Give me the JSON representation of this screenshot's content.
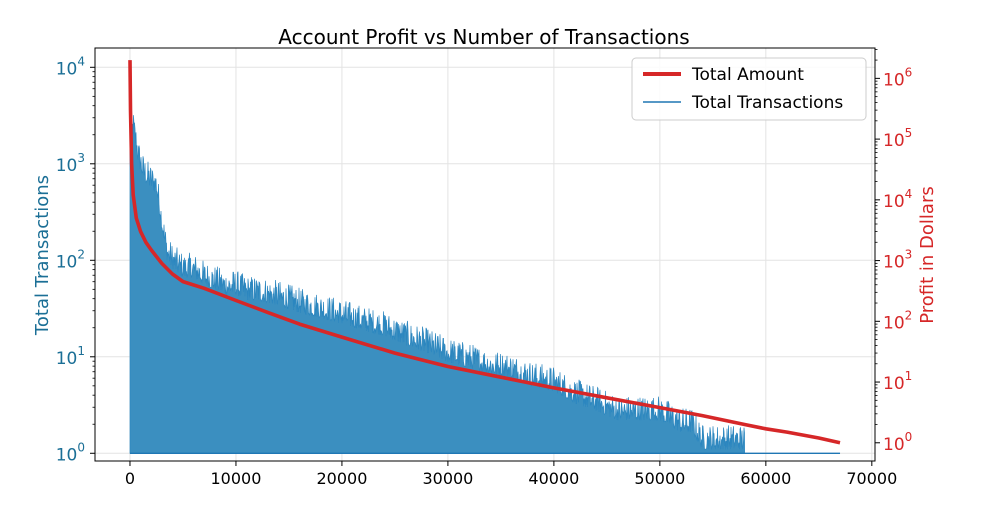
{
  "chart_data": {
    "type": "line",
    "title": "Account Profit vs Number of Transactions",
    "xlabel": "",
    "xlim": [
      -3300,
      70300
    ],
    "x_ticks": [
      0,
      10000,
      20000,
      30000,
      40000,
      50000,
      60000,
      70000
    ],
    "x_tick_labels": [
      "0",
      "10000",
      "20000",
      "30000",
      "40000",
      "50000",
      "60000",
      "70000"
    ],
    "y_left": {
      "label": "Total Transactions",
      "scale": "log",
      "ylim_log10": [
        -0.08,
        4.2
      ],
      "ticks": [
        {
          "base": "10",
          "exp": "0"
        },
        {
          "base": "10",
          "exp": "1"
        },
        {
          "base": "10",
          "exp": "2"
        },
        {
          "base": "10",
          "exp": "3"
        },
        {
          "base": "10",
          "exp": "4"
        }
      ],
      "color": "#1f77b4"
    },
    "y_right": {
      "label": "Profit in Dollars",
      "scale": "log",
      "ylim_log10": [
        -0.3,
        6.5
      ],
      "ticks": [
        {
          "base": "10",
          "exp": "0"
        },
        {
          "base": "10",
          "exp": "1"
        },
        {
          "base": "10",
          "exp": "2"
        },
        {
          "base": "10",
          "exp": "3"
        },
        {
          "base": "10",
          "exp": "4"
        },
        {
          "base": "10",
          "exp": "5"
        },
        {
          "base": "10",
          "exp": "6"
        }
      ],
      "color": "#d62728"
    },
    "legend": {
      "location": "top-right",
      "entries": [
        {
          "label": "Total Amount",
          "color": "#d62728",
          "style": "thick-line"
        },
        {
          "label": "Total Transactions",
          "color": "#1f77b4",
          "style": "thin-line"
        }
      ]
    },
    "series": [
      {
        "name": "Total Transactions",
        "axis": "left",
        "color": "#1f77b4",
        "description": "dense per-account transaction counts, filled from 1 to the envelope",
        "envelope_x": [
          0,
          120,
          300,
          500,
          800,
          1200,
          1600,
          2000,
          2500,
          3000,
          3500,
          4000,
          5000,
          6000,
          7000,
          8000,
          9000,
          10000,
          11000,
          12000,
          14000,
          16000,
          18000,
          20000,
          22000,
          24000,
          26000,
          28000,
          30000,
          32000,
          34000,
          36000,
          38000,
          40000,
          42000,
          44000,
          46000,
          48000,
          50000,
          52000,
          53000,
          54000,
          56000,
          58000
        ],
        "envelope_y": [
          2600,
          3000,
          3700,
          2800,
          1800,
          1300,
          1100,
          1000,
          900,
          380,
          180,
          150,
          120,
          120,
          100,
          90,
          80,
          80,
          70,
          70,
          62,
          52,
          46,
          40,
          34,
          30,
          24,
          20,
          16,
          14,
          12,
          11,
          9,
          8,
          6,
          5,
          4,
          4,
          4,
          3,
          3,
          2,
          2,
          2
        ],
        "floor_x": [
          0,
          58000,
          58000,
          67000
        ],
        "floor_y": [
          1,
          1,
          1,
          1
        ]
      },
      {
        "name": "Total Amount",
        "axis": "right",
        "color": "#d62728",
        "x": [
          0,
          50,
          150,
          300,
          600,
          1000,
          1500,
          2000,
          3000,
          4000,
          5000,
          7000,
          10000,
          13000,
          16000,
          20000,
          25000,
          30000,
          35000,
          40000,
          45000,
          50000,
          54000,
          58000,
          60000,
          62000,
          65000,
          67000
        ],
        "y": [
          2000000,
          300000,
          40000,
          12000,
          5000,
          3000,
          2000,
          1500,
          900,
          600,
          450,
          350,
          220,
          140,
          90,
          55,
          30,
          18,
          12,
          8,
          5.5,
          3.8,
          2.8,
          2.0,
          1.7,
          1.5,
          1.2,
          1.0
        ]
      }
    ]
  }
}
